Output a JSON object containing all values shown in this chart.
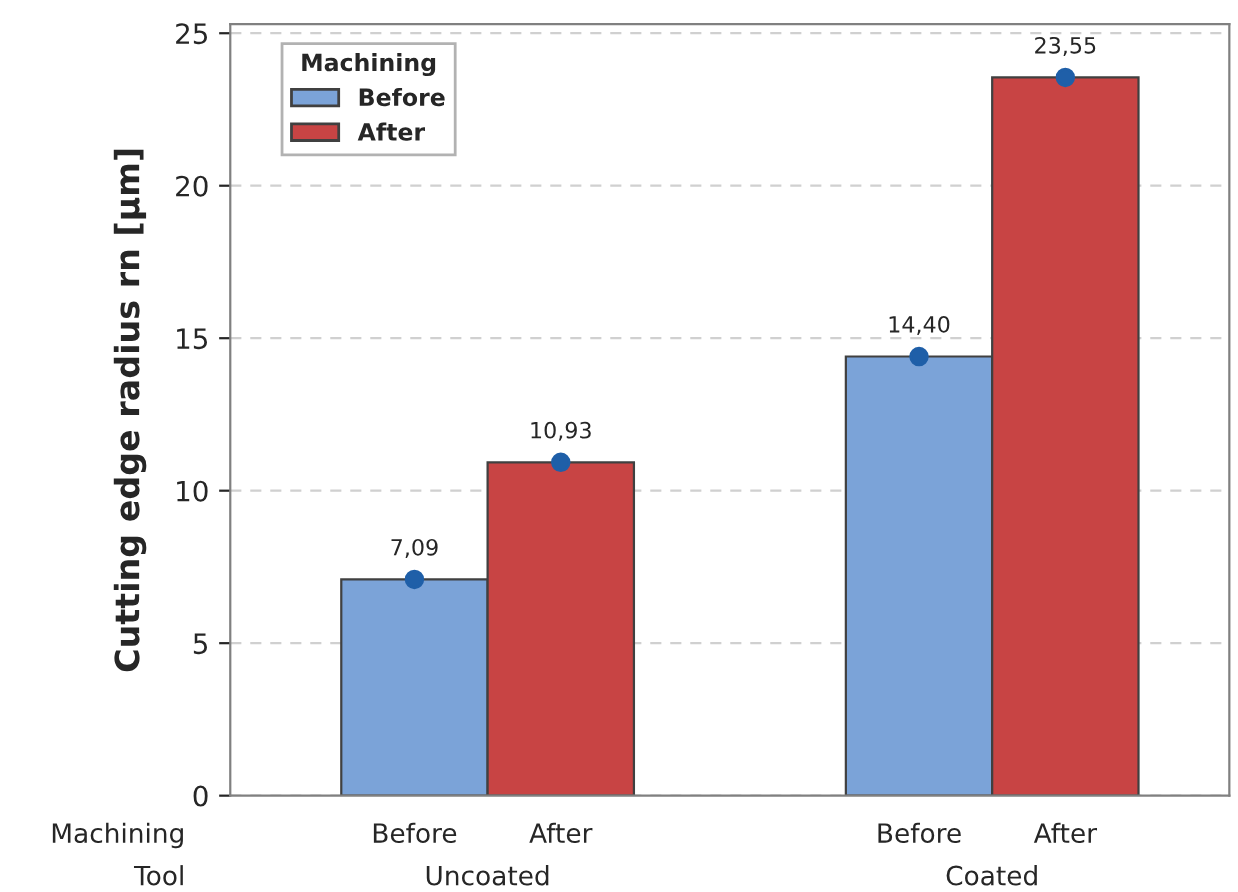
{
  "chart_data": {
    "type": "bar",
    "ylabel": "Cutting edge radius rn [µm]",
    "legend_title": "Machining",
    "legend": "top left",
    "categories": [
      "Uncoated",
      "Coated"
    ],
    "series": [
      {
        "name": "Before",
        "color": "#7ba3d8",
        "values": [
          7.09,
          14.4
        ],
        "value_labels": [
          "7,09",
          "14,40"
        ]
      },
      {
        "name": "After",
        "color": "#c84444",
        "values": [
          10.93,
          23.55
        ],
        "value_labels": [
          "10,93",
          "23,55"
        ]
      },
      {
        "type": "scatter",
        "marker": "circle",
        "color": "#1f5fa8",
        "values": [
          7.09,
          14.4
        ]
      },
      {
        "type": "scatter",
        "marker": "circle",
        "color": "#1f5fa8",
        "values": [
          10.93,
          23.55
        ]
      }
    ],
    "ylim": [
      0,
      25.3
    ],
    "yticks": [
      0,
      5,
      10,
      15,
      20,
      25
    ],
    "grid": "y",
    "annotations": [
      "Machining",
      "Tool"
    ]
  }
}
